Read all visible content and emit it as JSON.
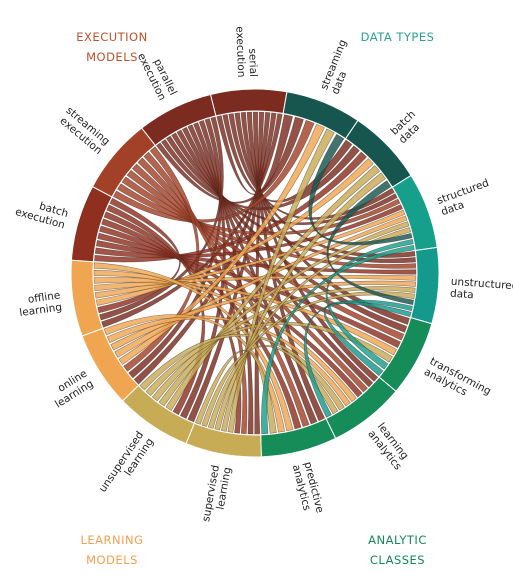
{
  "corners": {
    "execution": {
      "lines": [
        "EXECUTION",
        "MODELS"
      ],
      "color": "#c0522c"
    },
    "data": {
      "lines": [
        "DATA TYPES"
      ],
      "color": "#2aa198"
    },
    "learning": {
      "lines": [
        "LEARNING",
        "MODELS"
      ],
      "color": "#f0a050"
    },
    "analytic": {
      "lines": [
        "ANALYTIC",
        "CLASSES"
      ],
      "color": "#13895a"
    }
  },
  "groups": [
    {
      "id": "serial-execution",
      "lines": [
        "serial",
        "execution"
      ],
      "color": "#7b2b1f"
    },
    {
      "id": "streaming-data",
      "lines": [
        "streaming",
        "data"
      ],
      "color": "#17564f"
    },
    {
      "id": "batch-data",
      "lines": [
        "batch",
        "data"
      ],
      "color": "#17564f"
    },
    {
      "id": "structured-data",
      "lines": [
        "structured",
        "data"
      ],
      "color": "#16a08c"
    },
    {
      "id": "unstructured-data",
      "lines": [
        "unstructured",
        "data"
      ],
      "color": "#139a8c"
    },
    {
      "id": "transforming-analytics",
      "lines": [
        "transforming",
        "analytics"
      ],
      "color": "#168c59"
    },
    {
      "id": "learning-analytics",
      "lines": [
        "learning",
        "analytics"
      ],
      "color": "#168c59"
    },
    {
      "id": "predictive-analytics",
      "lines": [
        "predictive",
        "analytics"
      ],
      "color": "#168c59"
    },
    {
      "id": "supervised-learning",
      "lines": [
        "supervised",
        "learning"
      ],
      "color": "#c8ab55"
    },
    {
      "id": "unsupervised-learning",
      "lines": [
        "unsupervised",
        "learning"
      ],
      "color": "#c8ab55"
    },
    {
      "id": "online-learning",
      "lines": [
        "online",
        "learning"
      ],
      "color": "#f0a650"
    },
    {
      "id": "offline-learning",
      "lines": [
        "offline",
        "learning"
      ],
      "color": "#f0a650"
    },
    {
      "id": "batch-execution",
      "lines": [
        "batch",
        "execution"
      ],
      "color": "#8e2f20"
    },
    {
      "id": "streaming-execution",
      "lines": [
        "streaming",
        "execution"
      ],
      "color": "#a34128"
    },
    {
      "id": "parallel-execution",
      "lines": [
        "parallel",
        "execution"
      ],
      "color": "#7b2b1f"
    }
  ],
  "links": [
    [
      "serial-execution",
      "streaming-data"
    ],
    [
      "serial-execution",
      "batch-data"
    ],
    [
      "serial-execution",
      "structured-data"
    ],
    [
      "serial-execution",
      "unstructured-data"
    ],
    [
      "serial-execution",
      "transforming-analytics"
    ],
    [
      "serial-execution",
      "learning-analytics"
    ],
    [
      "serial-execution",
      "predictive-analytics"
    ],
    [
      "serial-execution",
      "supervised-learning"
    ],
    [
      "serial-execution",
      "unsupervised-learning"
    ],
    [
      "serial-execution",
      "online-learning"
    ],
    [
      "serial-execution",
      "offline-learning"
    ],
    [
      "parallel-execution",
      "streaming-data"
    ],
    [
      "parallel-execution",
      "batch-data"
    ],
    [
      "parallel-execution",
      "structured-data"
    ],
    [
      "parallel-execution",
      "unstructured-data"
    ],
    [
      "parallel-execution",
      "transforming-analytics"
    ],
    [
      "parallel-execution",
      "learning-analytics"
    ],
    [
      "parallel-execution",
      "predictive-analytics"
    ],
    [
      "parallel-execution",
      "supervised-learning"
    ],
    [
      "parallel-execution",
      "unsupervised-learning"
    ],
    [
      "parallel-execution",
      "online-learning"
    ],
    [
      "parallel-execution",
      "offline-learning"
    ],
    [
      "streaming-execution",
      "streaming-data"
    ],
    [
      "streaming-execution",
      "structured-data"
    ],
    [
      "streaming-execution",
      "unstructured-data"
    ],
    [
      "streaming-execution",
      "transforming-analytics"
    ],
    [
      "streaming-execution",
      "learning-analytics"
    ],
    [
      "streaming-execution",
      "predictive-analytics"
    ],
    [
      "streaming-execution",
      "supervised-learning"
    ],
    [
      "streaming-execution",
      "online-learning"
    ],
    [
      "batch-execution",
      "batch-data"
    ],
    [
      "batch-execution",
      "structured-data"
    ],
    [
      "batch-execution",
      "unstructured-data"
    ],
    [
      "batch-execution",
      "transforming-analytics"
    ],
    [
      "batch-execution",
      "learning-analytics"
    ],
    [
      "batch-execution",
      "predictive-analytics"
    ],
    [
      "batch-execution",
      "supervised-learning"
    ],
    [
      "batch-execution",
      "unsupervised-learning"
    ],
    [
      "batch-execution",
      "offline-learning"
    ],
    [
      "offline-learning",
      "batch-data"
    ],
    [
      "offline-learning",
      "structured-data"
    ],
    [
      "offline-learning",
      "unstructured-data"
    ],
    [
      "offline-learning",
      "transforming-analytics"
    ],
    [
      "offline-learning",
      "learning-analytics"
    ],
    [
      "offline-learning",
      "predictive-analytics"
    ],
    [
      "online-learning",
      "streaming-data"
    ],
    [
      "online-learning",
      "structured-data"
    ],
    [
      "online-learning",
      "unstructured-data"
    ],
    [
      "online-learning",
      "learning-analytics"
    ],
    [
      "online-learning",
      "predictive-analytics"
    ],
    [
      "unsupervised-learning",
      "batch-data"
    ],
    [
      "unsupervised-learning",
      "structured-data"
    ],
    [
      "unsupervised-learning",
      "unstructured-data"
    ],
    [
      "unsupervised-learning",
      "transforming-analytics"
    ],
    [
      "unsupervised-learning",
      "learning-analytics"
    ],
    [
      "supervised-learning",
      "streaming-data"
    ],
    [
      "supervised-learning",
      "batch-data"
    ],
    [
      "supervised-learning",
      "structured-data"
    ],
    [
      "supervised-learning",
      "unstructured-data"
    ],
    [
      "supervised-learning",
      "learning-analytics"
    ],
    [
      "supervised-learning",
      "predictive-analytics"
    ],
    [
      "streaming-data",
      "structured-data"
    ],
    [
      "batch-data",
      "unstructured-data"
    ],
    [
      "structured-data",
      "transforming-analytics"
    ],
    [
      "unstructured-data",
      "learning-analytics"
    ],
    [
      "structured-data",
      "predictive-analytics"
    ],
    [
      "unstructured-data",
      "transforming-analytics"
    ]
  ]
}
